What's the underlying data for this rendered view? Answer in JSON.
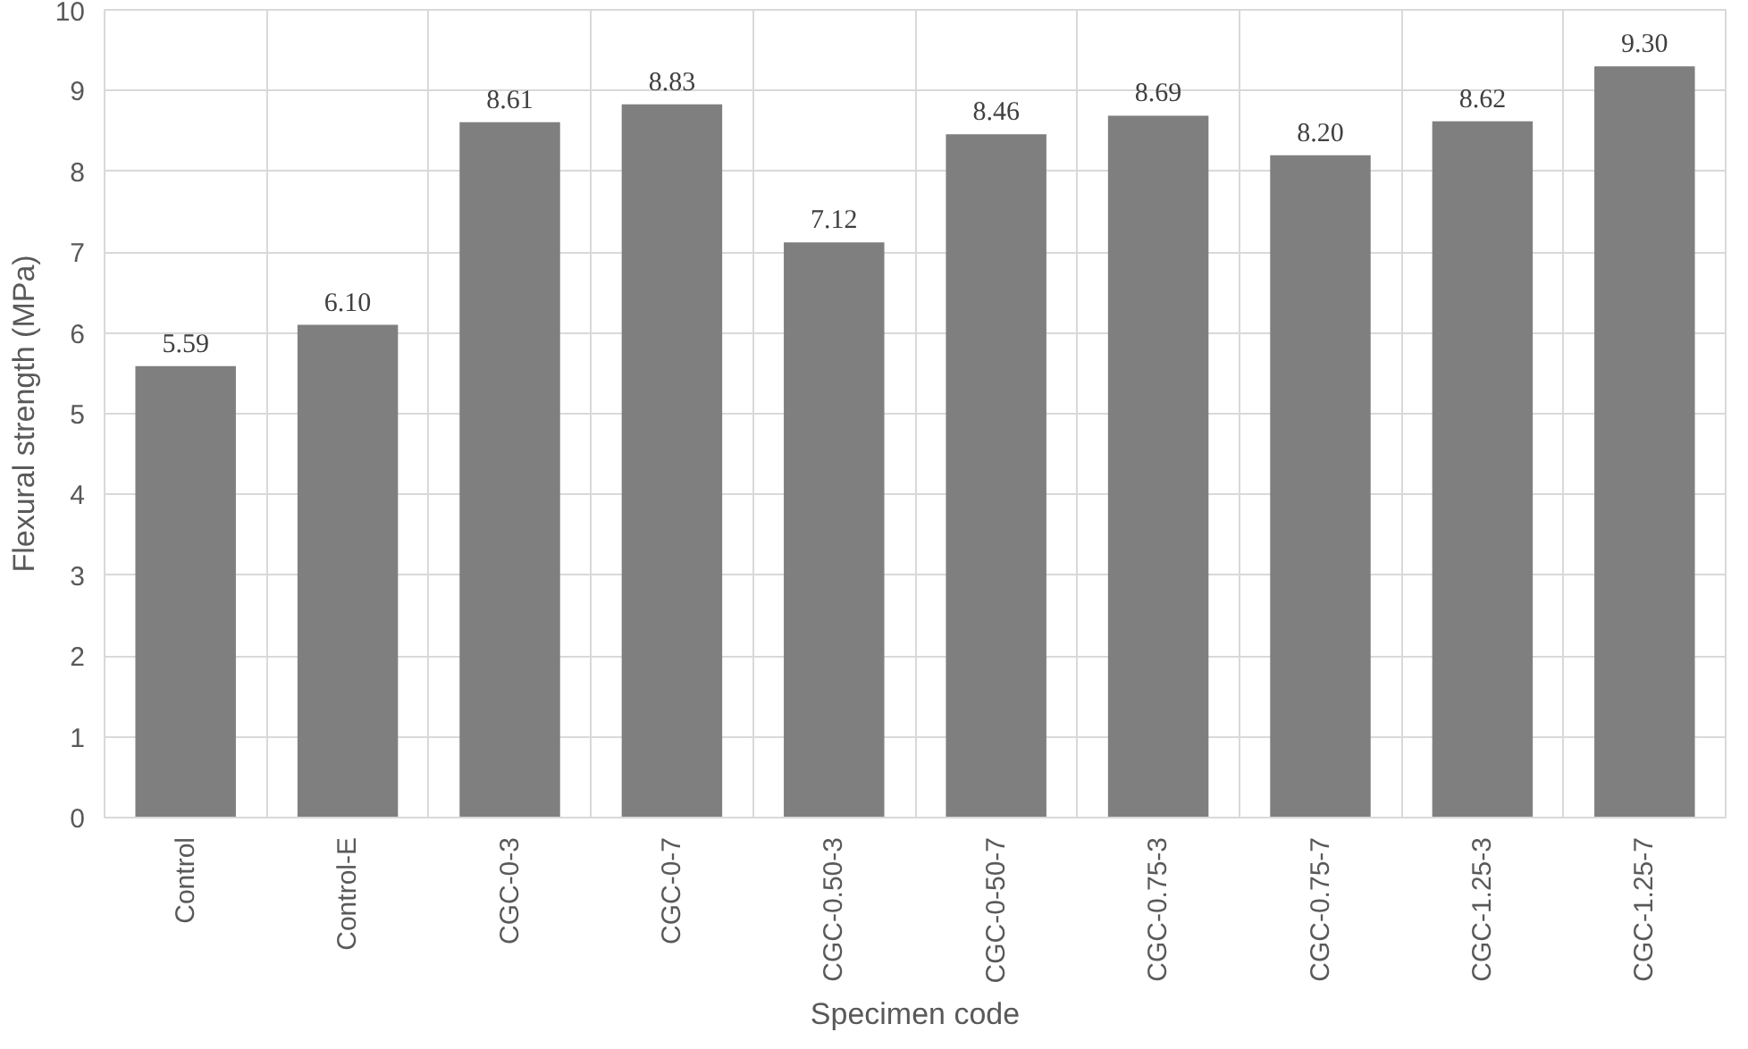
{
  "chart_data": {
    "type": "bar",
    "xlabel": "Specimen code",
    "ylabel": "Flexural strength (MPa)",
    "categories": [
      "Control",
      "Control-E",
      "CGC-0-3",
      "CGC-0-7",
      "CGC-0.50-3",
      "CGC-0-50-7",
      "CGC-0.75-3",
      "CGC-0.75-7",
      "CGC-1.25-3",
      "CGC-1.25-7"
    ],
    "values": [
      5.59,
      6.1,
      8.61,
      8.83,
      7.12,
      8.46,
      8.69,
      8.2,
      8.62,
      9.3
    ],
    "value_labels": [
      "5.59",
      "6.10",
      "8.61",
      "8.83",
      "7.12",
      "8.46",
      "8.69",
      "8.20",
      "8.62",
      "9.30"
    ],
    "color": "#7f7f7f",
    "ylim": [
      0,
      10
    ],
    "yticks": [
      0,
      1,
      2,
      3,
      4,
      5,
      6,
      7,
      8,
      9,
      10
    ],
    "grid": true
  }
}
